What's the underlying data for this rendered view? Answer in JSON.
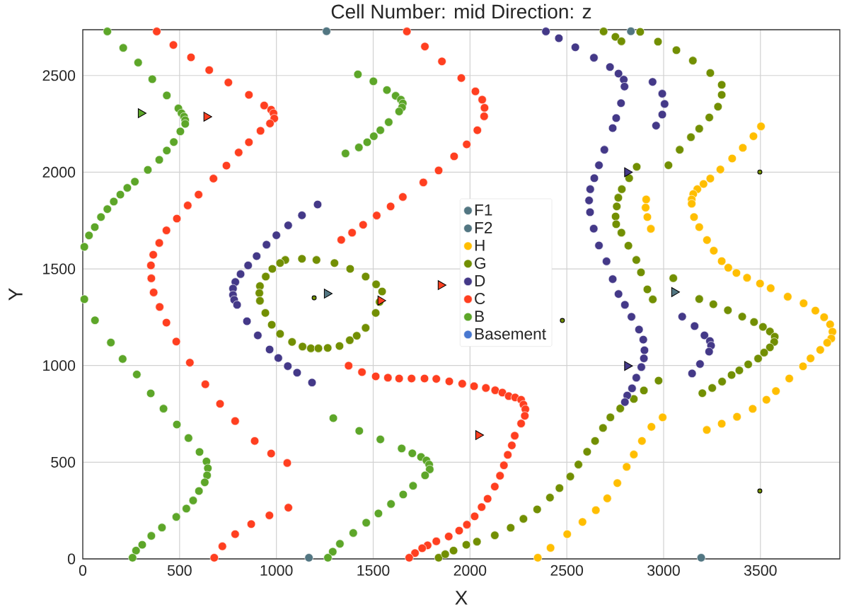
{
  "chart_data": {
    "type": "scatter",
    "title": "Cell Number: mid Direction: z",
    "xlabel": "X",
    "ylabel": "Y",
    "xlim": [
      0,
      3910
    ],
    "ylim": [
      0,
      2737
    ],
    "xticks": [
      0,
      500,
      1000,
      1500,
      2000,
      2500,
      3000,
      3500
    ],
    "yticks": [
      0,
      500,
      1000,
      1500,
      2000,
      2500
    ],
    "grid": true,
    "legend": "center",
    "marker": "circle",
    "series": [
      {
        "name": "F1",
        "color": "#527682",
        "x": [
          1259,
          1168
        ],
        "values": [
          2729,
          6
        ]
      },
      {
        "name": "F2",
        "color": "#527682",
        "x": [
          2831,
          3194
        ],
        "values": [
          2729,
          6
        ]
      },
      {
        "name": "H",
        "color": "#ffbe00",
        "x": [
          2350,
          2416,
          2502,
          2581,
          2650,
          2709,
          2761,
          2809,
          2846,
          2888,
          2937,
          2995,
          2910,
          2907,
          2916,
          2934,
          3503,
          3464,
          3409,
          3354,
          3293,
          3241,
          3206,
          3174,
          3153,
          3145,
          3145,
          3157,
          3184,
          3224,
          3259,
          3300,
          3334,
          3376,
          3431,
          3498,
          3553,
          3641,
          3723,
          3784,
          3829,
          3860,
          3872,
          3866,
          3845,
          3809,
          3759,
          3720,
          3649,
          3580,
          3531,
          3460,
          3379,
          3300,
          3223
        ],
        "values": [
          6,
          57,
          128,
          191,
          252,
          313,
          392,
          476,
          540,
          610,
          683,
          732,
          1859,
          1817,
          1768,
          1707,
          2237,
          2186,
          2126,
          2071,
          2014,
          1967,
          1939,
          1912,
          1887,
          1859,
          1837,
          1768,
          1716,
          1649,
          1594,
          1540,
          1506,
          1479,
          1454,
          1424,
          1400,
          1356,
          1322,
          1284,
          1250,
          1213,
          1175,
          1140,
          1118,
          1081,
          1037,
          996,
          933,
          868,
          823,
          776,
          735,
          699,
          667
        ]
      },
      {
        "name": "G",
        "color": "#728f02",
        "x": [
          2690,
          2751,
          2782,
          2879,
          2971,
          3066,
          3151,
          3241,
          3300,
          3300,
          3281,
          3236,
          3184,
          3141,
          3083,
          3025,
          2861,
          2822,
          2784,
          2766,
          2758,
          2752,
          2755,
          2782,
          2818,
          2859,
          2883,
          2916,
          2944,
          3050,
          3184,
          3257,
          3332,
          3406,
          3467,
          3513,
          3549,
          3574,
          3571,
          3549,
          3519,
          3488,
          3437,
          3391,
          3351,
          3302,
          3251,
          3200,
          1838,
          1872,
          1915,
          1981,
          2036,
          2128,
          2210,
          2276,
          2347,
          2413,
          2462,
          2518,
          2560,
          2605,
          2646,
          2687,
          2725,
          2776,
          2846,
          2898,
          2974,
          945,
          915,
          912,
          915,
          943,
          976,
          1019,
          1081,
          1135,
          1178,
          1217,
          1265,
          1326,
          1379,
          1415,
          1461,
          1513,
          1533,
          1546,
          1515,
          1461,
          1381,
          1300,
          1207,
          1132,
          1046,
          1019,
          979
        ],
        "values": [
          2728,
          2700,
          2677,
          2726,
          2675,
          2631,
          2577,
          2513,
          2452,
          2400,
          2339,
          2283,
          2225,
          2181,
          2116,
          2036,
          2028,
          1969,
          1912,
          1868,
          1823,
          1771,
          1731,
          1687,
          1620,
          1546,
          1482,
          1394,
          1342,
          1452,
          1344,
          1317,
          1286,
          1253,
          1225,
          1200,
          1176,
          1149,
          1122,
          1094,
          1067,
          1036,
          1006,
          975,
          951,
          917,
          884,
          857,
          6,
          24,
          43,
          73,
          89,
          122,
          161,
          207,
          256,
          317,
          366,
          426,
          488,
          554,
          610,
          677,
          732,
          778,
          827,
          871,
          922,
          1460,
          1411,
          1375,
          1335,
          1272,
          1211,
          1164,
          1122,
          1098,
          1089,
          1089,
          1091,
          1101,
          1131,
          1154,
          1195,
          1272,
          1329,
          1383,
          1420,
          1460,
          1500,
          1530,
          1546,
          1552,
          1546,
          1530,
          1500
        ]
      },
      {
        "name": "D",
        "color": "#443988",
        "x": [
          1213,
          1132,
          1061,
          1000,
          949,
          898,
          854,
          815,
          788,
          776,
          776,
          782,
          797,
          848,
          904,
          965,
          1010,
          1059,
          1107,
          1184,
          2392,
          2459,
          2544,
          2640,
          2723,
          2767,
          2794,
          2798,
          2780,
          2755,
          2737,
          2694,
          2666,
          2642,
          2621,
          2615,
          2620,
          2639,
          2666,
          2705,
          2737,
          2767,
          2800,
          2834,
          2873,
          2895,
          2901,
          2898,
          2885,
          2859,
          2837,
          2812,
          2800,
          2943,
          2993,
          3005,
          2993,
          2961,
          3096,
          3160,
          3211,
          3239,
          3245,
          3235,
          3188,
          3147
        ],
        "values": [
          1833,
          1777,
          1725,
          1674,
          1625,
          1566,
          1518,
          1473,
          1432,
          1398,
          1365,
          1340,
          1314,
          1229,
          1156,
          1083,
          1039,
          997,
          963,
          912,
          2728,
          2693,
          2646,
          2592,
          2544,
          2510,
          2479,
          2443,
          2357,
          2280,
          2228,
          2116,
          2036,
          1969,
          1912,
          1854,
          1793,
          1708,
          1621,
          1539,
          1447,
          1370,
          1314,
          1252,
          1186,
          1134,
          1079,
          1037,
          992,
          937,
          882,
          845,
          811,
          2467,
          2406,
          2353,
          2298,
          2241,
          1253,
          1204,
          1156,
          1127,
          1103,
          1072,
          1008,
          959
        ]
      },
      {
        "name": "C",
        "color": "#ff3f20",
        "x": [
          382,
          468,
          559,
          653,
          752,
          858,
          937,
          973,
          985,
          989,
          967,
          918,
          858,
          805,
          742,
          675,
          598,
          542,
          486,
          432,
          395,
          364,
          352,
          354,
          366,
          397,
          432,
          483,
          553,
          633,
          709,
          787,
          888,
          973,
          1056,
          1062,
          964,
          870,
          787,
          721,
          679,
          1335,
          1391,
          1448,
          1518,
          1590,
          1653,
          1759,
          1838,
          1918,
          1983,
          2038,
          2073,
          2075,
          2063,
          2028,
          1955,
          1855,
          1767,
          1674,
          1373,
          1442,
          1513,
          1576,
          1634,
          1698,
          1765,
          1826,
          1893,
          1960,
          2021,
          2082,
          2130,
          2167,
          2200,
          2233,
          2264,
          2276,
          2286,
          2283,
          2264,
          2231,
          2216,
          2195,
          2175,
          2155,
          2128,
          2091,
          2060,
          2024,
          1984,
          1944,
          1890,
          1826,
          1781,
          1753,
          1716,
          1686
        ],
        "values": [
          2728,
          2658,
          2594,
          2528,
          2464,
          2400,
          2345,
          2323,
          2305,
          2278,
          2252,
          2214,
          2155,
          2102,
          2034,
          1967,
          1884,
          1828,
          1760,
          1699,
          1634,
          1573,
          1518,
          1451,
          1378,
          1303,
          1222,
          1124,
          1015,
          903,
          802,
          713,
          610,
          545,
          496,
          265,
          225,
          180,
          128,
          65,
          6,
          1650,
          1687,
          1728,
          1776,
          1823,
          1872,
          1947,
          2009,
          2082,
          2144,
          2217,
          2289,
          2333,
          2375,
          2418,
          2487,
          2573,
          2650,
          2728,
          999,
          966,
          944,
          937,
          933,
          933,
          933,
          931,
          918,
          906,
          893,
          884,
          872,
          860,
          842,
          835,
          823,
          798,
          774,
          740,
          700,
          637,
          587,
          538,
          484,
          430,
          374,
          311,
          268,
          220,
          177,
          146,
          116,
          91,
          70,
          55,
          30,
          6
        ]
      },
      {
        "name": "B",
        "color": "#5da629",
        "x": [
          127,
          209,
          286,
          359,
          434,
          494,
          510,
          523,
          529,
          529,
          504,
          470,
          434,
          395,
          336,
          269,
          230,
          194,
          160,
          127,
          94,
          62,
          32,
          8,
          8,
          63,
          145,
          206,
          279,
          351,
          417,
          486,
          546,
          603,
          639,
          646,
          642,
          630,
          600,
          570,
          535,
          483,
          409,
          354,
          307,
          275,
          257,
          1421,
          1501,
          1571,
          1616,
          1643,
          1653,
          1649,
          1634,
          1580,
          1537,
          1503,
          1469,
          1426,
          1357,
          1294,
          1428,
          1537,
          1647,
          1702,
          1747,
          1775,
          1789,
          1792,
          1768,
          1706,
          1655,
          1592,
          1527,
          1464,
          1397,
          1328,
          1291,
          1266
        ],
        "values": [
          2728,
          2643,
          2567,
          2481,
          2397,
          2330,
          2305,
          2287,
          2269,
          2250,
          2211,
          2156,
          2112,
          2064,
          2012,
          1951,
          1919,
          1884,
          1848,
          1809,
          1768,
          1716,
          1673,
          1614,
          1343,
          1234,
          1119,
          1034,
          954,
          856,
          777,
          695,
          625,
          553,
          504,
          469,
          432,
          396,
          351,
          302,
          260,
          217,
          162,
          119,
          73,
          43,
          6,
          2506,
          2470,
          2425,
          2395,
          2375,
          2356,
          2335,
          2314,
          2259,
          2217,
          2186,
          2155,
          2128,
          2097,
          728,
          662,
          618,
          571,
          546,
          527,
          509,
          488,
          463,
          432,
          378,
          333,
          284,
          235,
          187,
          134,
          78,
          37,
          6
        ]
      },
      {
        "name": "Basement",
        "color": "#4878d0"
      },
      {
        "color": "#527682",
        "marker": "triangle",
        "x": [
          1261,
          3055
        ],
        "values": [
          1372,
          1380
        ]
      },
      {
        "color": "#5da629",
        "marker": "triangle",
        "x": [
          300
        ],
        "values": [
          2305
        ]
      },
      {
        "color": "#ff3f20",
        "marker": "triangle",
        "x": [
          639,
          1538,
          1849,
          2043
        ],
        "values": [
          2287,
          1336,
          1416,
          640
        ]
      },
      {
        "color": "#443988",
        "marker": "triangle",
        "x": [
          2812,
          2812
        ],
        "values": [
          2000,
          998
        ]
      },
      {
        "color": "#728f02",
        "marker": "circle",
        "x": [
          1195,
          2477,
          3497,
          3497
        ],
        "values": [
          1350,
          1233,
          2001,
          351
        ]
      }
    ]
  }
}
